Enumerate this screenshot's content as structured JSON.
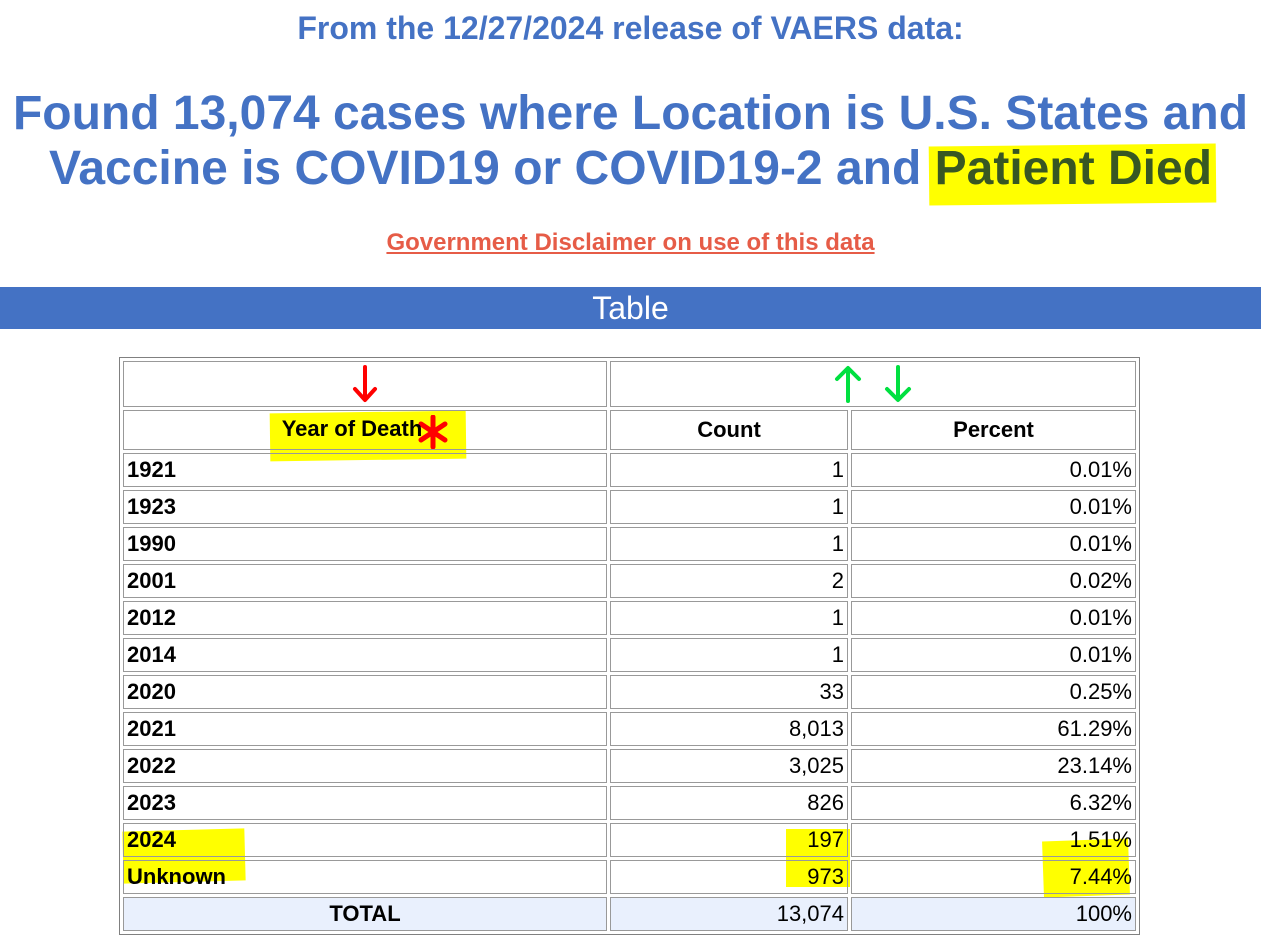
{
  "header": {
    "release_line": "From the 12/27/2024 release of VAERS data:",
    "headline_main": "Found 13,074 cases where Location is U.S. States and Vaccine is COVID19 or COVID19-2 and",
    "headline_highlight": "Patient Died",
    "disclaimer_link": "Government Disclaimer on use of this data"
  },
  "section": {
    "title": "Table"
  },
  "table": {
    "sort_icons": {
      "year_column": "sort-down-red-icon",
      "value_columns": [
        "sort-up-green-icon",
        "sort-down-green-icon"
      ]
    },
    "columns": [
      "Year of Death",
      "Count",
      "Percent"
    ],
    "rows": [
      {
        "year": "1921",
        "count": "1",
        "percent": "0.01%"
      },
      {
        "year": "1923",
        "count": "1",
        "percent": "0.01%"
      },
      {
        "year": "1990",
        "count": "1",
        "percent": "0.01%"
      },
      {
        "year": "2001",
        "count": "2",
        "percent": "0.02%"
      },
      {
        "year": "2012",
        "count": "1",
        "percent": "0.01%"
      },
      {
        "year": "2014",
        "count": "1",
        "percent": "0.01%"
      },
      {
        "year": "2020",
        "count": "33",
        "percent": "0.25%"
      },
      {
        "year": "2021",
        "count": "8,013",
        "percent": "61.29%"
      },
      {
        "year": "2022",
        "count": "3,025",
        "percent": "23.14%"
      },
      {
        "year": "2023",
        "count": "826",
        "percent": "6.32%"
      },
      {
        "year": "2024",
        "count": "197",
        "percent": "1.51%"
      },
      {
        "year": "Unknown",
        "count": "973",
        "percent": "7.44%"
      }
    ],
    "total": {
      "label": "TOTAL",
      "count": "13,074",
      "percent": "100%"
    }
  },
  "colors": {
    "title_blue": "#4472c4",
    "link_red": "#e65c47",
    "highlight_yellow": "#ffff00",
    "sort_red": "#ff0000",
    "sort_green": "#00e040",
    "total_row_bg": "#e9f0fd"
  }
}
